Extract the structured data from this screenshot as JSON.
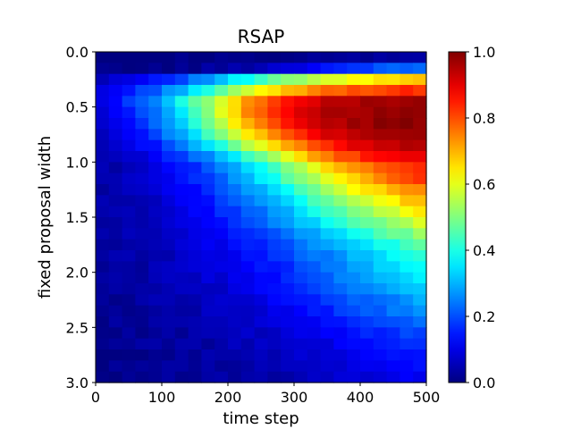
{
  "chart_data": {
    "type": "heatmap",
    "title": "RSAP",
    "xlabel": "time step",
    "ylabel": "fixed proposal width",
    "xlim": [
      0,
      500
    ],
    "ylim": [
      0.0,
      3.0
    ],
    "y_inverted": true,
    "x_ticks": [
      "0",
      "100",
      "200",
      "300",
      "400",
      "500"
    ],
    "y_ticks": [
      "0.0",
      "0.5",
      "1.0",
      "1.5",
      "2.0",
      "2.5",
      "3.0"
    ],
    "colormap": "jet",
    "colorbar": {
      "range": [
        0.0,
        1.0
      ],
      "ticks": [
        "0.0",
        "0.2",
        "0.4",
        "0.6",
        "0.8",
        "1.0"
      ]
    },
    "x_bins": 25,
    "y_centers": [
      0.05,
      0.15,
      0.25,
      0.35,
      0.45,
      0.55,
      0.65,
      0.75,
      0.85,
      0.95,
      1.05,
      1.15,
      1.25,
      1.35,
      1.45,
      1.55,
      1.65,
      1.75,
      1.85,
      1.95,
      2.05,
      2.15,
      2.25,
      2.35,
      2.45,
      2.55,
      2.65,
      2.75,
      2.85,
      2.95
    ],
    "profile": {
      "description": "row-wise saturation level and onset time",
      "amplitude": [
        0.05,
        0.25,
        0.7,
        0.85,
        0.99,
        1.0,
        1.0,
        1.0,
        0.98,
        0.95,
        0.92,
        0.9,
        0.86,
        0.82,
        0.78,
        0.74,
        0.68,
        0.62,
        0.58,
        0.56,
        0.54,
        0.5,
        0.45,
        0.42,
        0.38,
        0.34,
        0.3,
        0.27,
        0.24,
        0.22
      ],
      "onset": [
        420,
        330,
        210,
        175,
        160,
        165,
        175,
        190,
        215,
        245,
        275,
        290,
        305,
        320,
        335,
        350,
        360,
        370,
        380,
        390,
        400,
        405,
        410,
        420,
        430,
        440,
        445,
        455,
        460,
        470
      ],
      "width": [
        60,
        70,
        90,
        80,
        70,
        65,
        65,
        70,
        75,
        80,
        85,
        90,
        95,
        100,
        105,
        110,
        115,
        120,
        125,
        125,
        130,
        130,
        135,
        135,
        140,
        140,
        145,
        145,
        150,
        150
      ]
    }
  }
}
